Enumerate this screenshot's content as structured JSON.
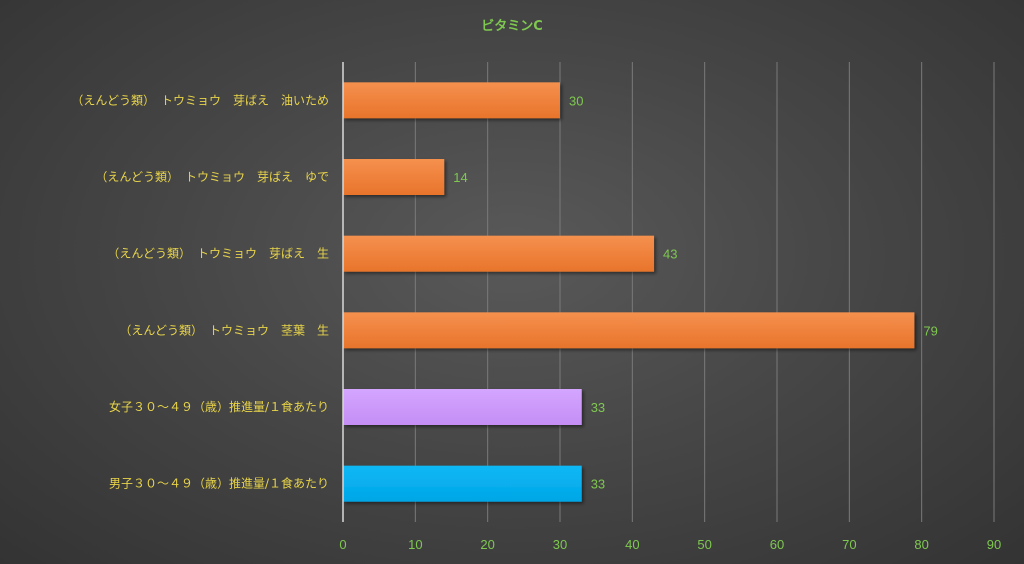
{
  "chart_data": {
    "type": "bar",
    "orientation": "horizontal",
    "title": "ビタミンC",
    "categories": [
      "（えんどう類）　トウミョウ　芽ばえ　油いため",
      "（えんどう類）　トウミョウ　芽ばえ　ゆで",
      "（えんどう類）　トウミョウ　芽ばえ　生",
      "（えんどう類）　トウミョウ　茎葉　生",
      "女子３０～４９（歳）推進量/１食あたり",
      "男子３０～４９（歳）推進量/１食あたり"
    ],
    "values": [
      30,
      14,
      43,
      79,
      33,
      33
    ],
    "bar_colors": [
      "#f07f37",
      "#f07f37",
      "#f07f37",
      "#f07f37",
      "#cc99ff",
      "#00b0f0"
    ],
    "xlim": [
      0,
      90
    ],
    "x_ticks": [
      "0",
      "10",
      "20",
      "30",
      "40",
      "50",
      "60",
      "70",
      "80",
      "90"
    ],
    "xlabel": "",
    "ylabel": "",
    "grid": "vertical",
    "legend": "none",
    "data_labels": true
  },
  "colors": {
    "title": "#7ec850",
    "category_text": "#e8d44a",
    "tick_text": "#7ec850",
    "data_label_text": "#7ec850",
    "gridline": "#7a7a7a",
    "axis_line": "#d9d9d9"
  }
}
